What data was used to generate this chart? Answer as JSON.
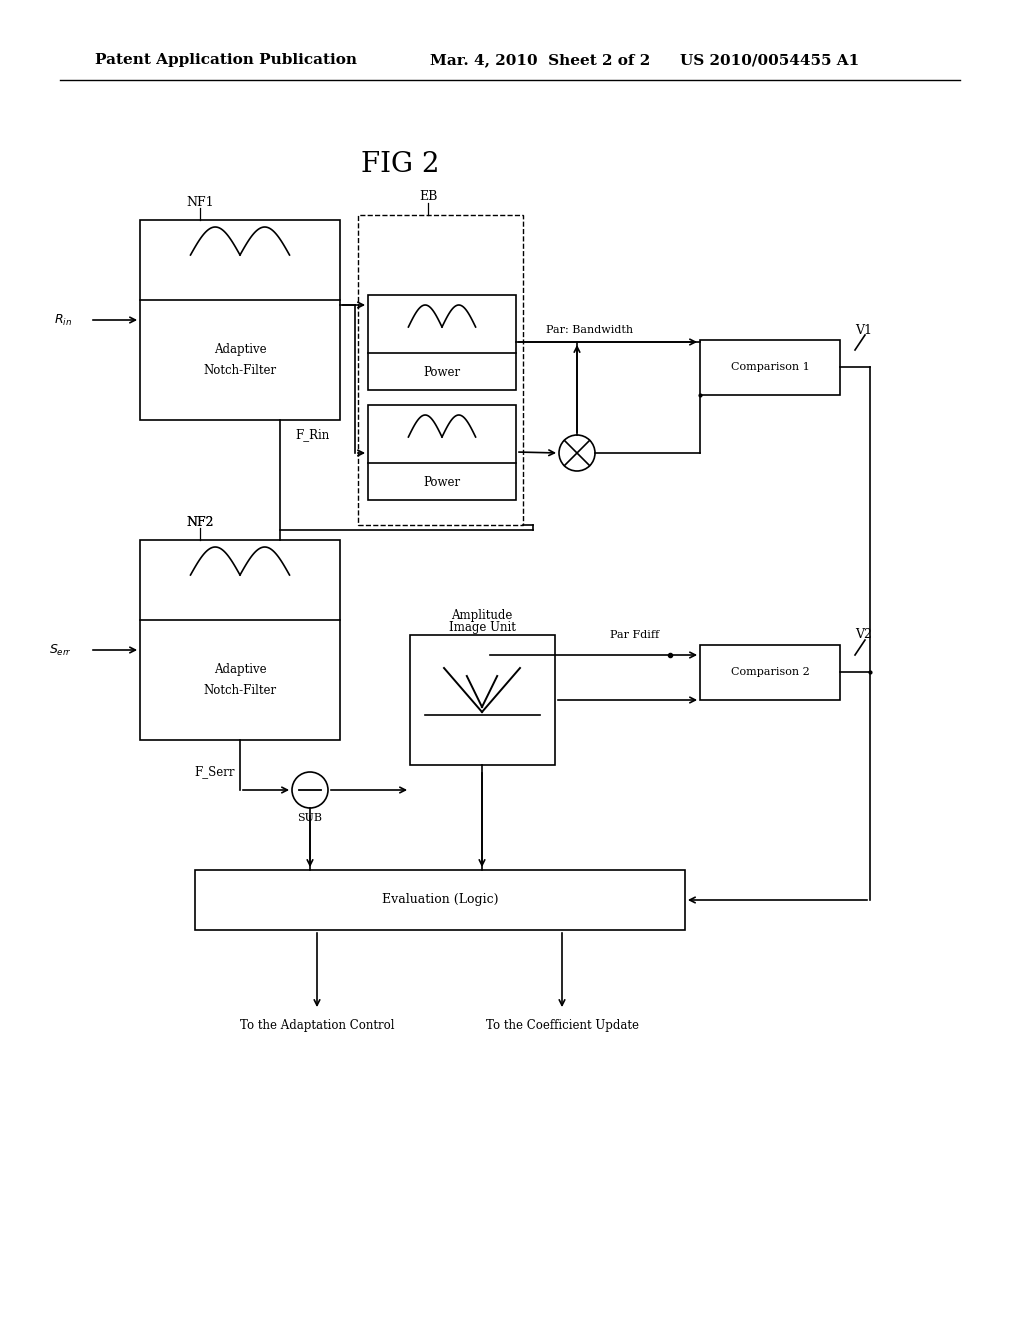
{
  "title": "FIG 2",
  "header_left": "Patent Application Publication",
  "header_mid": "Mar. 4, 2010  Sheet 2 of 2",
  "header_right": "US 2010/0054455 A1",
  "bg_color": "#ffffff",
  "line_color": "#000000",
  "font_size_header": 11,
  "font_size_title": 18,
  "font_size_label": 9,
  "font_size_box": 8.5
}
